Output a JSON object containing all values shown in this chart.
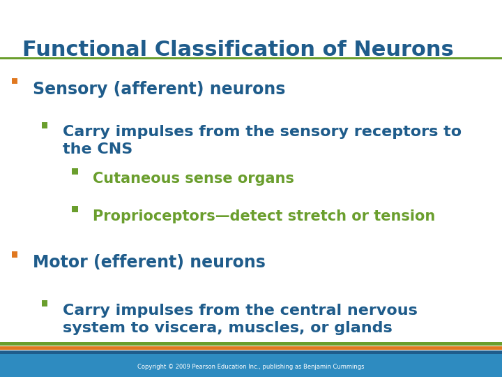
{
  "title": "Functional Classification of Neurons",
  "title_color": "#1F5C8B",
  "title_fontsize": 22,
  "bg_color": "#FFFFFF",
  "footer_bg_color": "#2E8BC0",
  "footer_text": "Copyright © 2009 Pearson Education Inc., publishing as Benjamin Cummings",
  "footer_text_color": "#FFFFFF",
  "title_underline_color": "#6A9E2D",
  "stripe_colors": [
    "#6A9E2D",
    "#E07820",
    "#1F5C8B"
  ],
  "bullet_color_l1": "#E07820",
  "bullet_color_l2": "#6A9E2D",
  "bullet_color_l3": "#6A9E2D",
  "text_color_l1": "#1F5C8B",
  "text_color_l2": "#1F5C8B",
  "text_color_l3": "#6A9E2D",
  "items": [
    {
      "level": 1,
      "text": "Sensory (afferent) neurons"
    },
    {
      "level": 2,
      "text": "Carry impulses from the sensory receptors to\nthe CNS"
    },
    {
      "level": 3,
      "text": "Cutaneous sense organs"
    },
    {
      "level": 3,
      "text": "Proprioceptors—detect stretch or tension"
    },
    {
      "level": 1,
      "text": "Motor (efferent) neurons"
    },
    {
      "level": 2,
      "text": "Carry impulses from the central nervous\nsystem to viscera, muscles, or glands"
    }
  ]
}
